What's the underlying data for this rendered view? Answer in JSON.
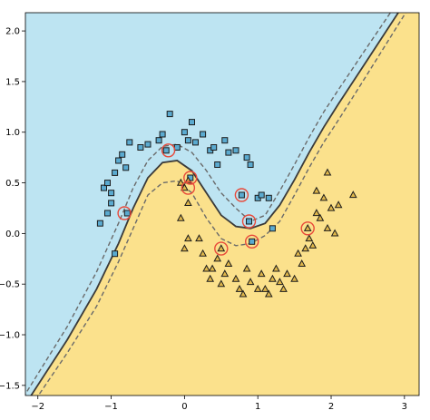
{
  "chart_data": {
    "type": "scatter",
    "title": "",
    "xlabel": "",
    "ylabel": "",
    "xlim": [
      -2.17,
      3.2
    ],
    "ylim": [
      -1.6,
      2.18
    ],
    "xticks": [
      -2,
      -1,
      0,
      1,
      2,
      3
    ],
    "yticks": [
      -1.5,
      -1.0,
      -0.5,
      0.0,
      0.5,
      1.0,
      1.5,
      2.0
    ],
    "xtick_labels": [
      "−2",
      "−1",
      "0",
      "1",
      "2",
      "3"
    ],
    "ytick_labels": [
      "−1.5",
      "−1.0",
      "−0.5",
      "0.0",
      "0.5",
      "1.0",
      "1.5",
      "2.0"
    ],
    "grid": false,
    "legend": "none",
    "colors": {
      "region_class0": "#bde4f2",
      "region_class1": "#fbe18c",
      "boundary": "#3a3a3a",
      "margin": "#6a6a6a",
      "square_fill": "#5aaad0",
      "triangle_fill": "#e0b74a",
      "marker_edge": "#1c1c1c",
      "support_vector_ring": "#e8493a"
    },
    "decision_boundary": [
      [
        -2.2,
        -1.72
      ],
      [
        -1.6,
        -1.05
      ],
      [
        -1.2,
        -0.55
      ],
      [
        -0.9,
        -0.1
      ],
      [
        -0.7,
        0.25
      ],
      [
        -0.5,
        0.55
      ],
      [
        -0.3,
        0.7
      ],
      [
        -0.1,
        0.72
      ],
      [
        0.1,
        0.62
      ],
      [
        0.3,
        0.4
      ],
      [
        0.5,
        0.18
      ],
      [
        0.7,
        0.07
      ],
      [
        0.9,
        0.05
      ],
      [
        1.1,
        0.1
      ],
      [
        1.3,
        0.28
      ],
      [
        1.5,
        0.53
      ],
      [
        1.7,
        0.8
      ],
      [
        1.9,
        1.05
      ],
      [
        2.1,
        1.28
      ],
      [
        2.5,
        1.72
      ],
      [
        3.25,
        2.55
      ]
    ],
    "margin_upper": [
      [
        -2.2,
        -1.62
      ],
      [
        -1.6,
        -0.92
      ],
      [
        -1.2,
        -0.38
      ],
      [
        -0.9,
        0.1
      ],
      [
        -0.7,
        0.45
      ],
      [
        -0.5,
        0.72
      ],
      [
        -0.3,
        0.86
      ],
      [
        -0.1,
        0.88
      ],
      [
        0.1,
        0.8
      ],
      [
        0.3,
        0.62
      ],
      [
        0.5,
        0.4
      ],
      [
        0.7,
        0.25
      ],
      [
        0.9,
        0.12
      ],
      [
        1.1,
        0.18
      ],
      [
        1.3,
        0.42
      ],
      [
        1.5,
        0.68
      ],
      [
        1.7,
        0.95
      ],
      [
        1.9,
        1.2
      ],
      [
        2.1,
        1.42
      ],
      [
        2.5,
        1.85
      ],
      [
        3.25,
        2.65
      ]
    ],
    "margin_lower": [
      [
        -2.2,
        -1.82
      ],
      [
        -1.6,
        -1.18
      ],
      [
        -1.2,
        -0.72
      ],
      [
        -0.9,
        -0.28
      ],
      [
        -0.7,
        0.05
      ],
      [
        -0.5,
        0.38
      ],
      [
        -0.3,
        0.5
      ],
      [
        -0.1,
        0.52
      ],
      [
        0.1,
        0.4
      ],
      [
        0.3,
        0.15
      ],
      [
        0.5,
        -0.05
      ],
      [
        0.7,
        -0.12
      ],
      [
        0.9,
        -0.1
      ],
      [
        1.1,
        -0.02
      ],
      [
        1.3,
        0.12
      ],
      [
        1.5,
        0.38
      ],
      [
        1.7,
        0.65
      ],
      [
        1.9,
        0.9
      ],
      [
        2.1,
        1.12
      ],
      [
        2.5,
        1.58
      ],
      [
        3.25,
        2.45
      ]
    ],
    "series": [
      {
        "marker": "square",
        "points": [
          [
            -1.15,
            0.1
          ],
          [
            -1.05,
            0.2
          ],
          [
            -1.1,
            0.45
          ],
          [
            -1.0,
            0.4
          ],
          [
            -1.05,
            0.5
          ],
          [
            -0.95,
            0.6
          ],
          [
            -0.9,
            0.72
          ],
          [
            -0.85,
            0.78
          ],
          [
            -0.8,
            0.65
          ],
          [
            -0.75,
            0.9
          ],
          [
            -0.6,
            0.85
          ],
          [
            -0.5,
            0.88
          ],
          [
            -0.35,
            0.92
          ],
          [
            -0.3,
            0.98
          ],
          [
            -0.2,
            1.18
          ],
          [
            -0.1,
            0.85
          ],
          [
            0.0,
            1.0
          ],
          [
            0.05,
            0.92
          ],
          [
            0.1,
            1.1
          ],
          [
            0.15,
            0.9
          ],
          [
            0.25,
            0.98
          ],
          [
            0.35,
            0.82
          ],
          [
            0.4,
            0.85
          ],
          [
            0.45,
            0.68
          ],
          [
            0.55,
            0.92
          ],
          [
            0.6,
            0.8
          ],
          [
            0.7,
            0.82
          ],
          [
            0.85,
            0.75
          ],
          [
            0.9,
            0.68
          ],
          [
            1.0,
            0.35
          ],
          [
            1.05,
            0.38
          ],
          [
            1.15,
            0.35
          ],
          [
            1.2,
            0.05
          ],
          [
            -0.95,
            -0.2
          ],
          [
            -1.0,
            0.3
          ],
          [
            -0.78,
            0.2
          ],
          [
            -0.25,
            0.82
          ],
          [
            0.08,
            0.55
          ],
          [
            0.78,
            0.38
          ],
          [
            0.88,
            0.12
          ],
          [
            0.92,
            -0.08
          ]
        ]
      },
      {
        "marker": "triangle",
        "points": [
          [
            -0.05,
            0.5
          ],
          [
            0.0,
            0.45
          ],
          [
            0.05,
            0.3
          ],
          [
            -0.05,
            0.15
          ],
          [
            0.05,
            -0.05
          ],
          [
            0.0,
            -0.15
          ],
          [
            0.2,
            -0.05
          ],
          [
            0.25,
            -0.2
          ],
          [
            0.3,
            -0.35
          ],
          [
            0.35,
            -0.45
          ],
          [
            0.38,
            -0.35
          ],
          [
            0.45,
            -0.25
          ],
          [
            0.5,
            -0.5
          ],
          [
            0.55,
            -0.4
          ],
          [
            0.6,
            -0.3
          ],
          [
            0.7,
            -0.45
          ],
          [
            0.75,
            -0.55
          ],
          [
            0.8,
            -0.6
          ],
          [
            0.85,
            -0.35
          ],
          [
            0.9,
            -0.48
          ],
          [
            1.0,
            -0.55
          ],
          [
            1.05,
            -0.4
          ],
          [
            1.1,
            -0.55
          ],
          [
            1.15,
            -0.6
          ],
          [
            1.2,
            -0.45
          ],
          [
            1.25,
            -0.35
          ],
          [
            1.3,
            -0.48
          ],
          [
            1.35,
            -0.55
          ],
          [
            1.4,
            -0.4
          ],
          [
            1.5,
            -0.45
          ],
          [
            1.55,
            -0.2
          ],
          [
            1.6,
            -0.3
          ],
          [
            1.65,
            -0.15
          ],
          [
            1.7,
            -0.05
          ],
          [
            1.75,
            -0.12
          ],
          [
            1.8,
            0.2
          ],
          [
            1.85,
            0.15
          ],
          [
            1.9,
            0.35
          ],
          [
            1.95,
            0.05
          ],
          [
            2.0,
            0.25
          ],
          [
            2.05,
            0.0
          ],
          [
            2.1,
            0.28
          ],
          [
            2.3,
            0.38
          ],
          [
            1.95,
            0.6
          ],
          [
            1.8,
            0.42
          ],
          [
            0.5,
            -0.15
          ],
          [
            1.68,
            0.05
          ],
          [
            0.05,
            0.52
          ]
        ]
      }
    ],
    "support_vectors": [
      [
        -0.82,
        0.2
      ],
      [
        -0.22,
        0.82
      ],
      [
        0.05,
        0.45
      ],
      [
        0.08,
        0.55
      ],
      [
        0.5,
        -0.15
      ],
      [
        0.78,
        0.38
      ],
      [
        0.88,
        0.12
      ],
      [
        0.92,
        -0.08
      ],
      [
        1.68,
        0.05
      ]
    ]
  }
}
